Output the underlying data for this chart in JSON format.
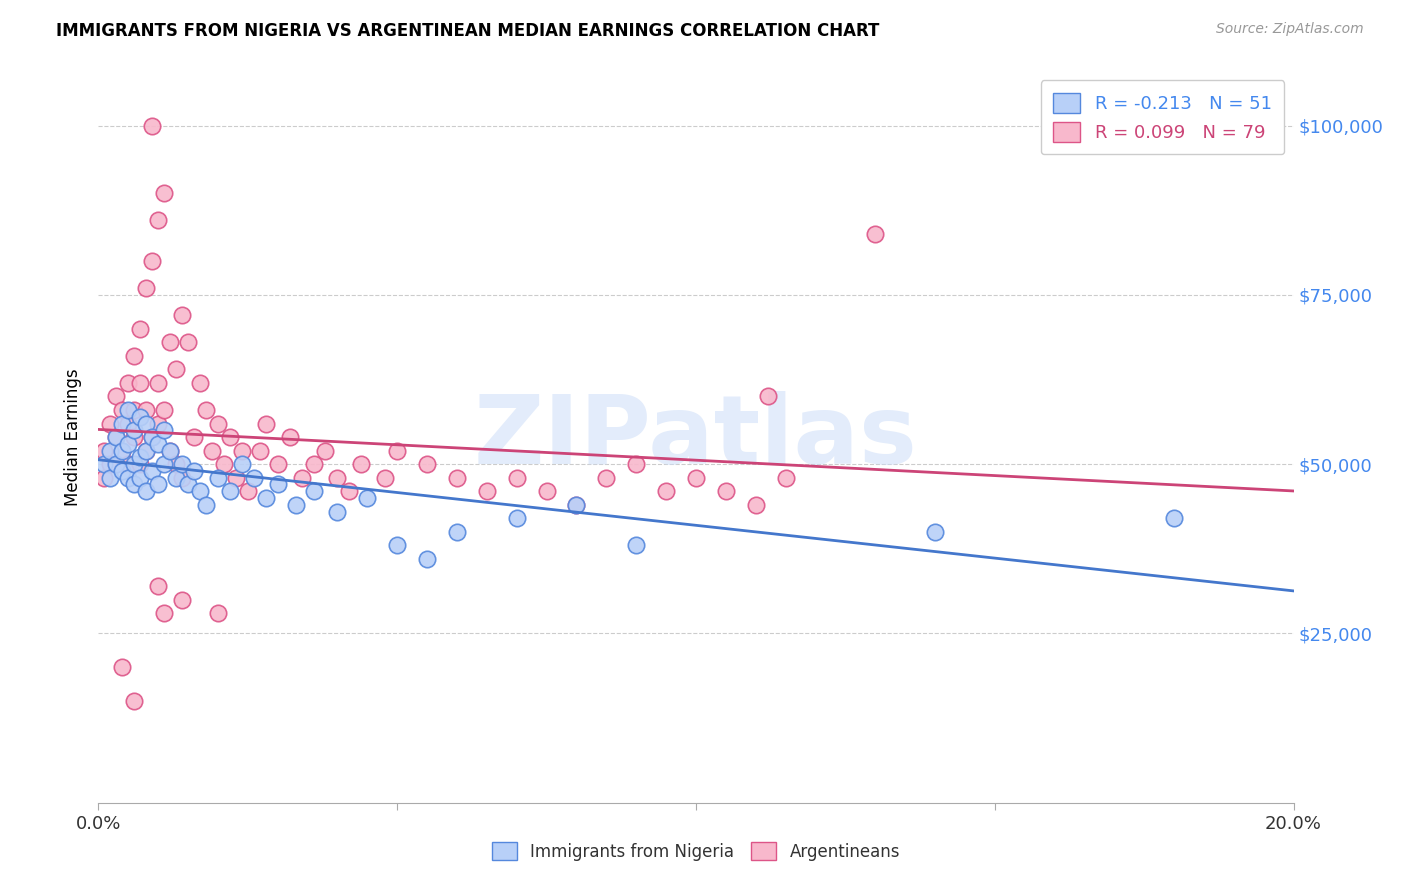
{
  "title": "IMMIGRANTS FROM NIGERIA VS ARGENTINEAN MEDIAN EARNINGS CORRELATION CHART",
  "source": "Source: ZipAtlas.com",
  "ylabel": "Median Earnings",
  "yticks": [
    0,
    25000,
    50000,
    75000,
    100000
  ],
  "ytick_labels": [
    "",
    "$25,000",
    "$50,000",
    "$75,000",
    "$100,000"
  ],
  "xlim": [
    0.0,
    0.2
  ],
  "ylim": [
    0,
    108000
  ],
  "legend_nigeria": "R = -0.213   N = 51",
  "legend_argentina": "R = 0.099   N = 79",
  "color_nigeria_fill": "#b8d0f8",
  "color_nigeria_edge": "#5588dd",
  "color_argentina_fill": "#f8b8cc",
  "color_argentina_edge": "#dd5588",
  "color_nigeria_line": "#4477cc",
  "color_argentina_line": "#cc4477",
  "watermark": "ZIPatlas",
  "nigeria_x": [
    0.001,
    0.002,
    0.002,
    0.003,
    0.003,
    0.004,
    0.004,
    0.004,
    0.005,
    0.005,
    0.005,
    0.006,
    0.006,
    0.006,
    0.007,
    0.007,
    0.007,
    0.008,
    0.008,
    0.008,
    0.009,
    0.009,
    0.01,
    0.01,
    0.011,
    0.011,
    0.012,
    0.013,
    0.014,
    0.015,
    0.016,
    0.017,
    0.018,
    0.02,
    0.022,
    0.024,
    0.026,
    0.028,
    0.03,
    0.033,
    0.036,
    0.04,
    0.045,
    0.05,
    0.055,
    0.06,
    0.07,
    0.08,
    0.09,
    0.14,
    0.18
  ],
  "nigeria_y": [
    50000,
    52000,
    48000,
    54000,
    50000,
    56000,
    49000,
    52000,
    58000,
    48000,
    53000,
    55000,
    50000,
    47000,
    57000,
    51000,
    48000,
    56000,
    52000,
    46000,
    54000,
    49000,
    53000,
    47000,
    55000,
    50000,
    52000,
    48000,
    50000,
    47000,
    49000,
    46000,
    44000,
    48000,
    46000,
    50000,
    48000,
    45000,
    47000,
    44000,
    46000,
    43000,
    45000,
    38000,
    36000,
    40000,
    42000,
    44000,
    38000,
    40000,
    42000
  ],
  "argentina_x": [
    0.001,
    0.001,
    0.002,
    0.002,
    0.003,
    0.003,
    0.003,
    0.004,
    0.004,
    0.005,
    0.005,
    0.005,
    0.006,
    0.006,
    0.006,
    0.007,
    0.007,
    0.007,
    0.008,
    0.008,
    0.008,
    0.009,
    0.009,
    0.01,
    0.01,
    0.01,
    0.011,
    0.011,
    0.012,
    0.012,
    0.013,
    0.013,
    0.014,
    0.014,
    0.015,
    0.016,
    0.017,
    0.018,
    0.019,
    0.02,
    0.021,
    0.022,
    0.023,
    0.024,
    0.025,
    0.027,
    0.028,
    0.03,
    0.032,
    0.034,
    0.036,
    0.038,
    0.04,
    0.042,
    0.044,
    0.048,
    0.05,
    0.055,
    0.06,
    0.065,
    0.07,
    0.075,
    0.08,
    0.085,
    0.09,
    0.095,
    0.1,
    0.105,
    0.11,
    0.115,
    0.004,
    0.006,
    0.009,
    0.01,
    0.011,
    0.014,
    0.02,
    0.112,
    0.13
  ],
  "argentina_y": [
    52000,
    48000,
    56000,
    50000,
    60000,
    54000,
    50000,
    58000,
    52000,
    62000,
    56000,
    50000,
    66000,
    58000,
    54000,
    70000,
    62000,
    50000,
    76000,
    58000,
    52000,
    80000,
    54000,
    86000,
    62000,
    56000,
    90000,
    58000,
    68000,
    52000,
    64000,
    50000,
    72000,
    48000,
    68000,
    54000,
    62000,
    58000,
    52000,
    56000,
    50000,
    54000,
    48000,
    52000,
    46000,
    52000,
    56000,
    50000,
    54000,
    48000,
    50000,
    52000,
    48000,
    46000,
    50000,
    48000,
    52000,
    50000,
    48000,
    46000,
    48000,
    46000,
    44000,
    48000,
    50000,
    46000,
    48000,
    46000,
    44000,
    48000,
    20000,
    15000,
    100000,
    32000,
    28000,
    30000,
    28000,
    60000,
    84000
  ]
}
